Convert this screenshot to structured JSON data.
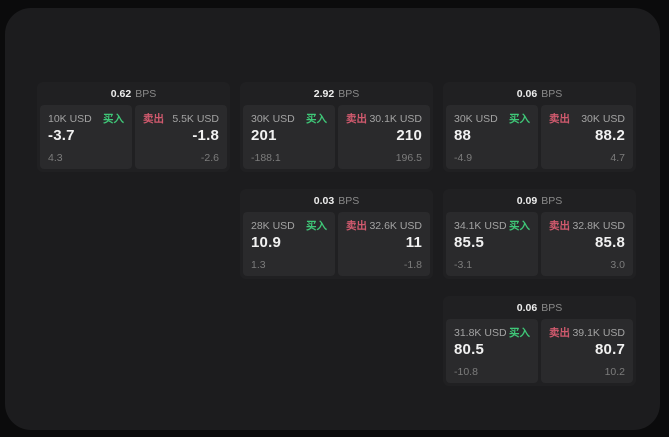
{
  "page": {
    "background": "#0b0b0c",
    "panel_background": "#1c1c1e"
  },
  "labels": {
    "bps_unit": "BPS",
    "buy": "买入",
    "sell": "卖出"
  },
  "colors": {
    "buy_accent": "#3fc878",
    "sell_accent": "#d15a6e"
  },
  "cards": [
    {
      "bps": "0.62",
      "buy": {
        "size": "10K USD",
        "price": "-3.7",
        "delta": "4.3"
      },
      "sell": {
        "size": "5.5K USD",
        "price": "-1.8",
        "delta": "-2.6"
      }
    },
    {
      "bps": "2.92",
      "buy": {
        "size": "30K USD",
        "price": "201",
        "delta": "-188.1"
      },
      "sell": {
        "size": "30.1K USD",
        "price": "210",
        "delta": "196.5"
      }
    },
    {
      "bps": "0.06",
      "buy": {
        "size": "30K USD",
        "price": "88",
        "delta": "-4.9"
      },
      "sell": {
        "size": "30K USD",
        "price": "88.2",
        "delta": "4.7"
      }
    },
    {
      "bps": "0.03",
      "buy": {
        "size": "28K USD",
        "price": "10.9",
        "delta": "1.3"
      },
      "sell": {
        "size": "32.6K USD",
        "price": "11",
        "delta": "-1.8"
      }
    },
    {
      "bps": "0.09",
      "buy": {
        "size": "34.1K USD",
        "price": "85.5",
        "delta": "-3.1"
      },
      "sell": {
        "size": "32.8K USD",
        "price": "85.8",
        "delta": "3.0"
      }
    },
    {
      "bps": "0.06",
      "buy": {
        "size": "31.8K USD",
        "price": "80.5",
        "delta": "-10.8"
      },
      "sell": {
        "size": "39.1K USD",
        "price": "80.7",
        "delta": "10.2"
      }
    }
  ]
}
